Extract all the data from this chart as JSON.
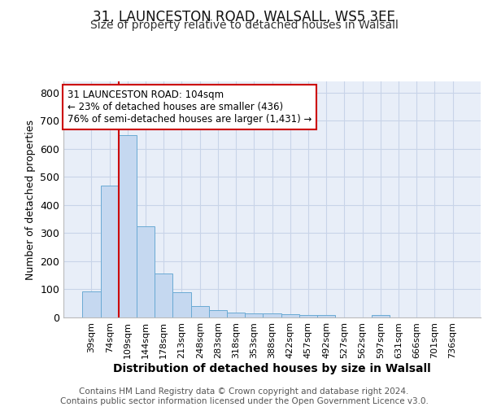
{
  "title_line1": "31, LAUNCESTON ROAD, WALSALL, WS5 3EE",
  "title_line2": "Size of property relative to detached houses in Walsall",
  "xlabel": "Distribution of detached houses by size in Walsall",
  "ylabel": "Number of detached properties",
  "categories": [
    "39sqm",
    "74sqm",
    "109sqm",
    "144sqm",
    "178sqm",
    "213sqm",
    "248sqm",
    "283sqm",
    "318sqm",
    "353sqm",
    "388sqm",
    "422sqm",
    "457sqm",
    "492sqm",
    "527sqm",
    "562sqm",
    "597sqm",
    "631sqm",
    "666sqm",
    "701sqm",
    "736sqm"
  ],
  "values": [
    94,
    470,
    648,
    325,
    157,
    91,
    40,
    25,
    18,
    15,
    15,
    13,
    10,
    8,
    0,
    0,
    8,
    0,
    0,
    0,
    0
  ],
  "bar_color": "#c5d8f0",
  "bar_edge_color": "#6aaad4",
  "vline_color": "#cc0000",
  "vline_bar_index": 2,
  "annotation_text": "31 LAUNCESTON ROAD: 104sqm\n← 23% of detached houses are smaller (436)\n76% of semi-detached houses are larger (1,431) →",
  "annotation_box_color": "#ffffff",
  "annotation_box_edge": "#cc0000",
  "annotation_fontsize": 8.5,
  "grid_color": "#c8d4e8",
  "background_color": "#e8eef8",
  "ylim": [
    0,
    840
  ],
  "yticks": [
    0,
    100,
    200,
    300,
    400,
    500,
    600,
    700,
    800
  ],
  "footer_text": "Contains HM Land Registry data © Crown copyright and database right 2024.\nContains public sector information licensed under the Open Government Licence v3.0.",
  "title_fontsize": 12,
  "subtitle_fontsize": 10,
  "ylabel_fontsize": 9,
  "xlabel_fontsize": 10,
  "xtick_fontsize": 8,
  "ytick_fontsize": 9,
  "footer_fontsize": 7.5
}
